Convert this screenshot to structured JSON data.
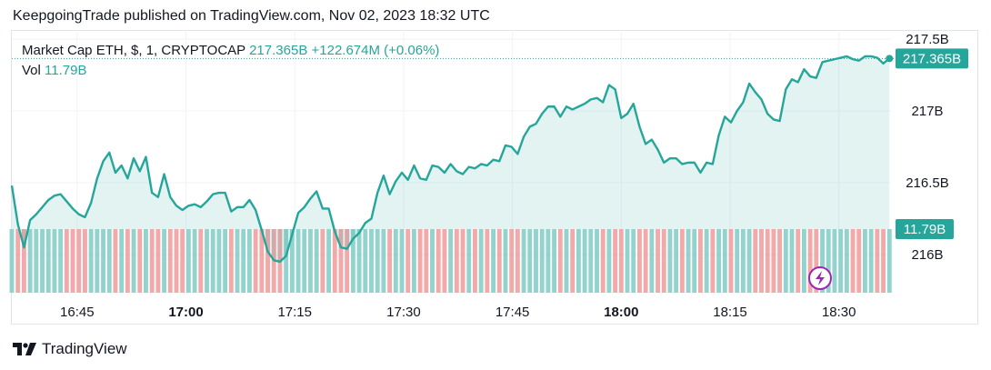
{
  "header": {
    "publisher_line": "KeepgoingTrade published on TradingView.com, Nov 02, 2023 18:32 UTC"
  },
  "legend": {
    "symbol": "Market Cap ETH, $, 1, CRYPTOCAP",
    "last": "217.365B",
    "change": "+122.674M (+0.06%)",
    "vol_label": "Vol",
    "vol_value": "11.79B"
  },
  "footer": {
    "brand": "TradingView"
  },
  "colors": {
    "line": "#26a69a",
    "fill": "#26a69a",
    "vol_up": "#80cbc4",
    "vol_down": "#ef9a9a",
    "badge": "#26a69a",
    "grid": "#f0f3fa",
    "icon_purple": "#9c27b0"
  },
  "chart_data": {
    "type": "area",
    "title": "Market Cap ETH, $, 1, CRYPTOCAP",
    "y_unit": "B",
    "ylim": [
      215.82,
      217.6
    ],
    "y_ticks": [
      {
        "value": 217.5,
        "label": "217.5B"
      },
      {
        "value": 217.0,
        "label": "217B"
      },
      {
        "value": 216.5,
        "label": "216.5B"
      },
      {
        "value": 216.0,
        "label": "216B"
      }
    ],
    "x_ticks": [
      {
        "minute": 6,
        "label": "16:45",
        "bold": false
      },
      {
        "minute": 21,
        "label": "17:00",
        "bold": true
      },
      {
        "minute": 36,
        "label": "17:15",
        "bold": false
      },
      {
        "minute": 51,
        "label": "17:30",
        "bold": false
      },
      {
        "minute": 66,
        "label": "17:45",
        "bold": false
      },
      {
        "minute": 81,
        "label": "18:00",
        "bold": true
      },
      {
        "minute": 96,
        "label": "18:15",
        "bold": false
      },
      {
        "minute": 111,
        "label": "18:30",
        "bold": false
      }
    ],
    "xlim_minutes": [
      0,
      135
    ],
    "last_value_label": "217.365B",
    "last_volume_label": "11.79B",
    "volume_reference": 11.79,
    "series": [
      {
        "values": [
          216.48,
          216.21,
          216.05,
          216.24,
          216.28,
          216.33,
          216.38,
          216.41,
          216.42,
          216.37,
          216.32,
          216.28,
          216.26,
          216.36,
          216.53,
          216.65,
          216.71,
          216.57,
          216.62,
          216.53,
          216.67,
          216.58,
          216.68,
          216.43,
          216.4,
          216.56,
          216.4,
          216.34,
          216.31,
          216.34,
          216.35,
          216.33,
          216.37,
          216.42,
          216.43,
          216.43,
          216.3,
          216.33,
          216.33,
          216.38,
          216.31,
          216.17,
          216.02,
          215.96,
          215.95,
          215.99,
          216.14,
          216.29,
          216.33,
          216.39,
          216.44,
          216.32,
          216.32,
          216.16,
          216.05,
          216.04,
          216.11,
          216.15,
          216.22,
          216.25,
          216.43,
          216.55,
          216.42,
          216.51,
          216.57,
          216.52,
          216.62,
          216.53,
          216.52,
          216.62,
          216.61,
          216.57,
          216.63,
          216.58,
          216.56,
          216.61,
          216.6,
          216.63,
          216.62,
          216.66,
          216.65,
          216.76,
          216.75,
          216.7,
          216.82,
          216.89,
          216.91,
          216.98,
          217.03,
          217.03,
          216.96,
          217.03,
          217.01,
          217.03,
          217.05,
          217.08,
          217.09,
          217.06,
          217.18,
          217.15,
          216.95,
          216.98,
          217.05,
          216.89,
          216.77,
          216.8,
          216.73,
          216.64,
          216.67,
          216.67,
          216.63,
          216.64,
          216.64,
          216.57,
          216.64,
          216.63,
          216.83,
          216.96,
          216.92,
          217.0,
          217.06,
          217.19,
          217.13,
          217.08,
          216.98,
          216.94,
          216.93,
          217.15,
          217.22,
          217.2,
          217.29,
          217.24,
          217.23,
          217.34,
          217.35,
          217.36,
          217.37,
          217.38,
          217.36,
          217.35,
          217.38,
          217.38,
          217.37,
          217.33,
          217.365
        ],
        "volume_ratios": [
          0.42,
          0.55,
          0.38,
          0.61,
          0.47,
          0.53,
          0.66,
          0.44,
          0.58,
          0.49,
          0.62,
          0.41,
          0.57,
          0.46,
          0.69,
          0.52,
          0.63,
          0.45,
          0.59,
          0.48,
          0.71,
          0.43,
          0.55,
          0.6,
          0.39,
          0.64,
          0.5,
          0.57,
          0.46,
          0.62,
          0.44,
          0.53,
          0.68,
          0.41,
          0.56,
          0.49,
          0.61,
          0.47,
          0.52,
          0.58,
          0.45,
          0.66,
          0.5,
          0.43,
          0.6,
          0.54,
          0.48,
          0.63,
          0.42,
          0.57,
          0.51,
          0.65,
          0.46,
          0.59,
          0.44,
          0.55,
          0.62,
          0.48,
          0.53,
          0.67,
          0.41,
          0.56,
          0.5,
          0.6,
          0.45,
          0.58,
          0.52,
          0.64,
          0.47,
          0.55,
          0.61,
          0.43,
          0.57,
          0.5,
          0.66,
          0.46,
          0.59,
          0.53,
          0.49,
          0.62,
          0.44,
          0.56,
          0.68,
          0.48,
          0.54,
          0.6,
          0.42,
          0.58,
          0.51,
          0.63,
          0.47,
          0.55,
          0.6,
          0.45,
          0.57,
          0.52,
          0.65,
          0.43,
          0.59,
          0.5,
          0.62,
          0.46,
          0.56,
          0.53,
          0.61,
          0.44,
          0.58,
          0.49,
          0.64,
          0.47,
          0.55,
          0.6,
          0.42,
          0.57,
          0.51,
          0.66,
          0.45,
          0.59,
          0.53,
          0.48,
          0.62,
          0.44,
          0.56,
          0.6,
          0.5,
          0.63,
          0.46,
          0.58,
          0.52,
          0.65,
          0.43,
          0.57,
          0.54,
          0.61,
          0.47,
          0.59,
          0.5,
          0.64,
          0.45,
          0.56,
          0.6,
          0.52,
          1.0
        ]
      }
    ]
  }
}
